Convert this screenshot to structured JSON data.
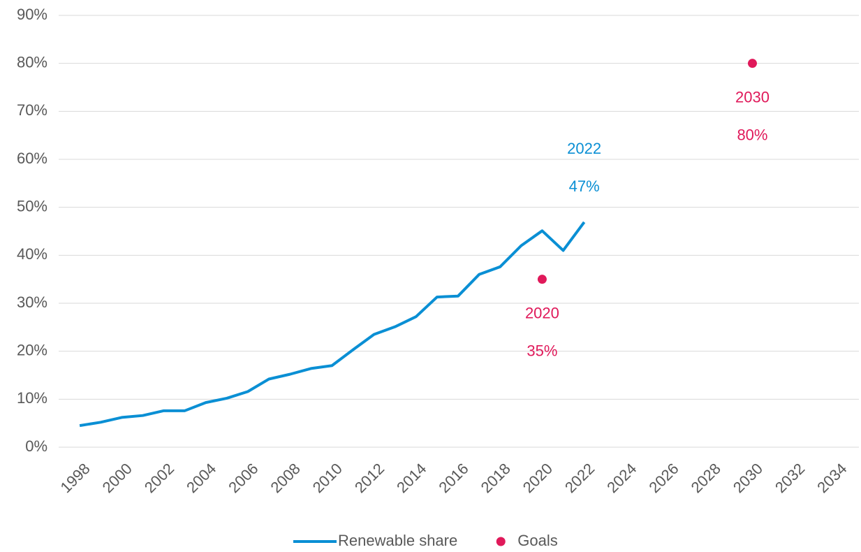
{
  "chart_data": {
    "type": "line",
    "series": [
      {
        "name": "Renewable share",
        "type": "line",
        "color": "#0a8fd4",
        "x": [
          1998,
          1999,
          2000,
          2001,
          2002,
          2003,
          2004,
          2005,
          2006,
          2007,
          2008,
          2009,
          2010,
          2011,
          2012,
          2013,
          2014,
          2015,
          2016,
          2017,
          2018,
          2019,
          2020,
          2021,
          2022
        ],
        "values": [
          4.5,
          5.2,
          6.2,
          6.6,
          7.6,
          7.6,
          9.3,
          10.2,
          11.6,
          14.2,
          15.2,
          16.4,
          17.0,
          20.3,
          23.5,
          25.1,
          27.2,
          31.3,
          31.5,
          36.0,
          37.6,
          42.0,
          45.1,
          41.0,
          46.9
        ]
      },
      {
        "name": "Goals",
        "type": "scatter",
        "color": "#e0195a",
        "x": [
          2020,
          2030
        ],
        "values": [
          35,
          80
        ]
      }
    ],
    "annotations": [
      {
        "x": 2022,
        "y": 47,
        "position": "above",
        "color": "#0a8fd4",
        "lines": [
          "2022",
          "47%"
        ]
      },
      {
        "x": 2020,
        "y": 35,
        "position": "below",
        "color": "#e0195a",
        "lines": [
          "2020",
          "35%"
        ]
      },
      {
        "x": 2030,
        "y": 80,
        "position": "below",
        "color": "#e0195a",
        "lines": [
          "2030",
          "80%"
        ]
      }
    ],
    "xlim": [
      1997,
      2035
    ],
    "xticks": [
      1998,
      2000,
      2002,
      2004,
      2006,
      2008,
      2010,
      2012,
      2014,
      2016,
      2018,
      2020,
      2022,
      2024,
      2026,
      2028,
      2030,
      2032,
      2034
    ],
    "ylim": [
      0,
      90
    ],
    "yticks": [
      {
        "value": 0,
        "label": "0%"
      },
      {
        "value": 10,
        "label": "10%"
      },
      {
        "value": 20,
        "label": "20%"
      },
      {
        "value": 30,
        "label": "30%"
      },
      {
        "value": 40,
        "label": "40%"
      },
      {
        "value": 50,
        "label": "50%"
      },
      {
        "value": 60,
        "label": "60%"
      },
      {
        "value": 70,
        "label": "70%"
      },
      {
        "value": 80,
        "label": "80%"
      },
      {
        "value": 90,
        "label": "90%"
      }
    ],
    "grid": true,
    "legend": "bottom"
  }
}
